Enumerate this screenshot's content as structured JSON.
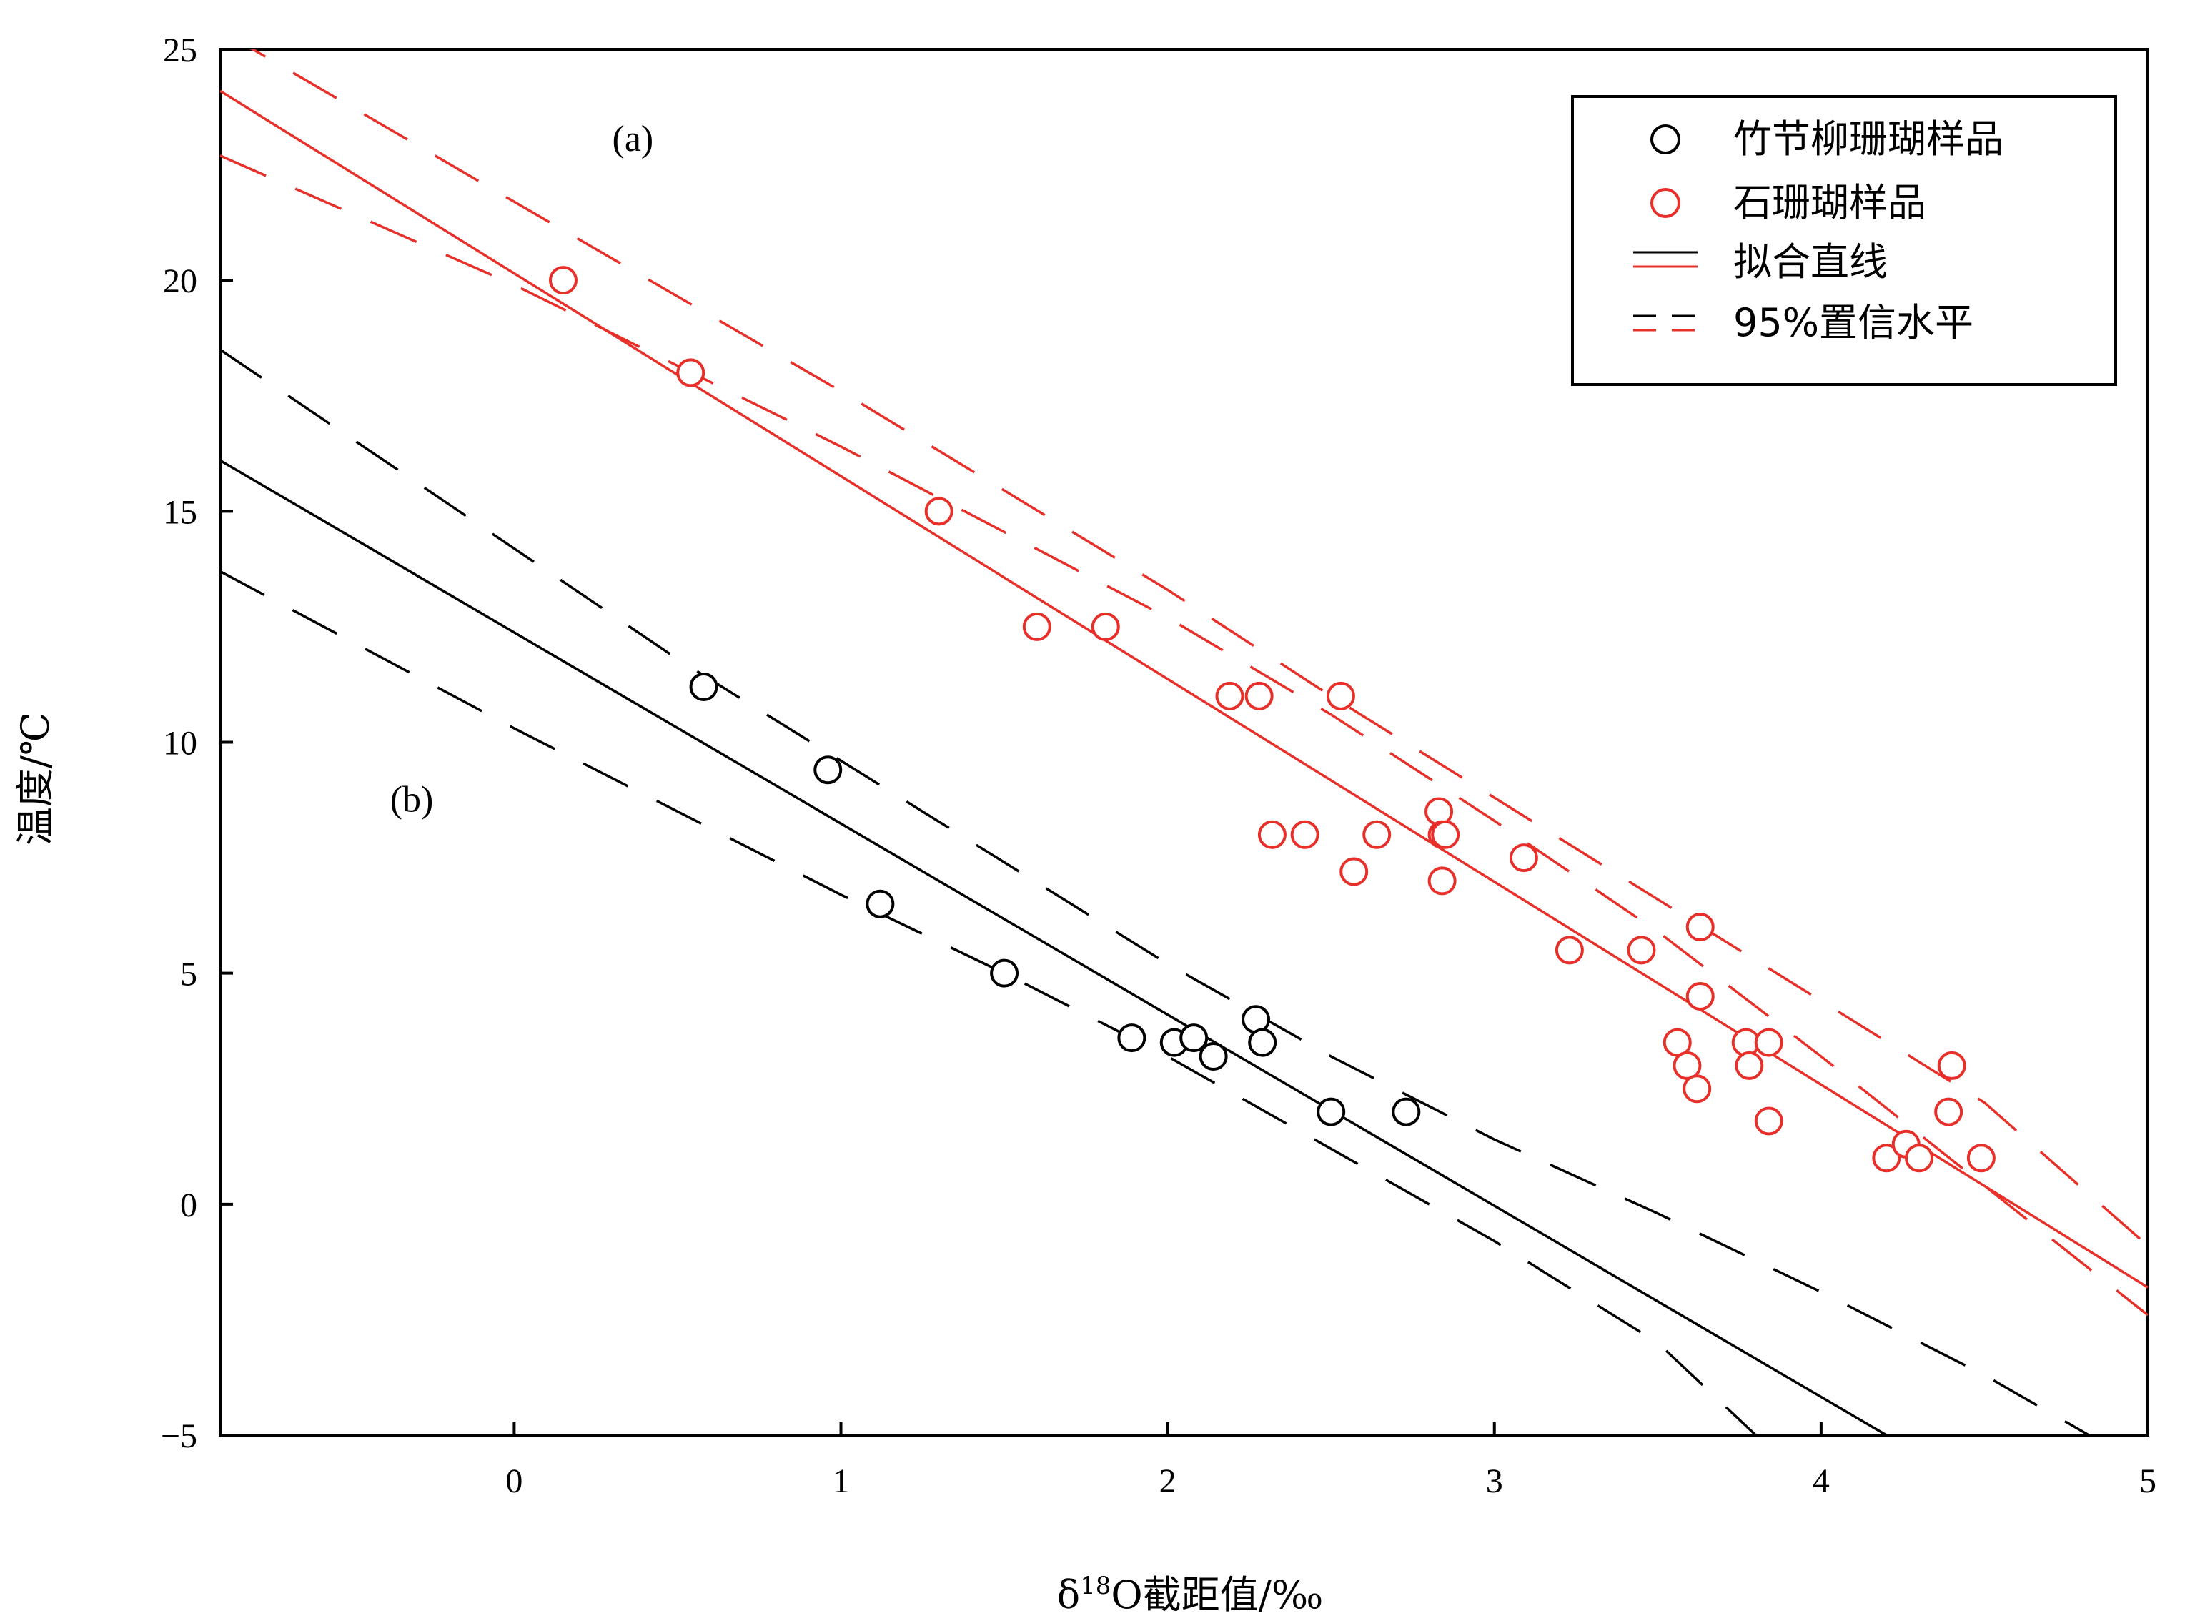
{
  "chart_data": {
    "type": "scatter",
    "xlabel_main": "δ",
    "xlabel_sup": "18",
    "xlabel_rest": "O截距值/‰",
    "ylabel": "温度/℃",
    "xlim": [
      -0.9,
      5
    ],
    "ylim": [
      -5,
      25
    ],
    "xticks": [
      0,
      1,
      2,
      3,
      4,
      5
    ],
    "yticks": [
      -5,
      0,
      5,
      10,
      15,
      20,
      25
    ],
    "xtick_labels": [
      "0",
      "1",
      "2",
      "3",
      "4",
      "5"
    ],
    "ytick_labels": [
      "−5",
      "0",
      "5",
      "10",
      "15",
      "20",
      "25"
    ],
    "grid": false,
    "legend_position": "top-right",
    "annotations": [
      {
        "text": "(a)",
        "x": 0.3,
        "y": 22.8
      },
      {
        "text": "(b)",
        "x": -0.38,
        "y": 8.5
      }
    ],
    "legend": [
      {
        "label": "竹节柳珊瑚样品",
        "kind": "circle",
        "color": "#000000"
      },
      {
        "label": "石珊瑚样品",
        "kind": "circle",
        "color": "#e8302a"
      },
      {
        "label": "拟合直线",
        "kind": "line",
        "colors": [
          "#000000",
          "#e8302a"
        ]
      },
      {
        "label": "95%置信水平",
        "kind": "dash",
        "colors": [
          "#000000",
          "#e8302a"
        ]
      }
    ],
    "series": [
      {
        "name": "竹节柳珊瑚样品",
        "color": "#000000",
        "points": [
          [
            0.58,
            11.2
          ],
          [
            0.96,
            9.4
          ],
          [
            1.12,
            6.5
          ],
          [
            1.5,
            5.0
          ],
          [
            1.89,
            3.6
          ],
          [
            2.02,
            3.5
          ],
          [
            2.08,
            3.6
          ],
          [
            2.14,
            3.2
          ],
          [
            2.27,
            4.0
          ],
          [
            2.29,
            3.5
          ],
          [
            2.5,
            2.0
          ],
          [
            2.73,
            2.0
          ]
        ],
        "fit": [
          [
            -0.9,
            16.1
          ],
          [
            4.2,
            -5.0
          ]
        ],
        "ci_upper": [
          [
            -0.9,
            18.5
          ],
          [
            0.5,
            11.8
          ],
          [
            1.0,
            9.6
          ],
          [
            1.5,
            7.4
          ],
          [
            2.0,
            5.2
          ],
          [
            2.5,
            3.2
          ],
          [
            3.0,
            1.4
          ],
          [
            3.5,
            -0.2
          ],
          [
            4.0,
            -1.9
          ],
          [
            4.5,
            -3.7
          ],
          [
            4.82,
            -5.0
          ]
        ],
        "ci_lower": [
          [
            -0.9,
            13.7
          ],
          [
            0.0,
            10.3
          ],
          [
            0.5,
            8.5
          ],
          [
            1.0,
            6.7
          ],
          [
            1.5,
            5.0
          ],
          [
            2.0,
            3.2
          ],
          [
            2.5,
            1.2
          ],
          [
            3.0,
            -0.8
          ],
          [
            3.5,
            -3.0
          ],
          [
            3.8,
            -5.0
          ]
        ]
      },
      {
        "name": "石珊瑚样品",
        "color": "#e8302a",
        "points": [
          [
            0.15,
            20.0
          ],
          [
            0.54,
            18.0
          ],
          [
            1.3,
            15.0
          ],
          [
            1.6,
            12.5
          ],
          [
            1.81,
            12.5
          ],
          [
            2.19,
            11.0
          ],
          [
            2.28,
            11.0
          ],
          [
            2.53,
            11.0
          ],
          [
            2.32,
            8.0
          ],
          [
            2.42,
            8.0
          ],
          [
            2.57,
            7.2
          ],
          [
            2.64,
            8.0
          ],
          [
            2.83,
            8.5
          ],
          [
            2.84,
            8.0
          ],
          [
            2.85,
            8.0
          ],
          [
            2.84,
            7.0
          ],
          [
            3.09,
            7.5
          ],
          [
            3.23,
            5.5
          ],
          [
            3.45,
            5.5
          ],
          [
            3.56,
            3.5
          ],
          [
            3.59,
            3.0
          ],
          [
            3.62,
            2.5
          ],
          [
            3.63,
            6.0
          ],
          [
            3.63,
            4.5
          ],
          [
            3.77,
            3.5
          ],
          [
            3.78,
            3.0
          ],
          [
            3.84,
            3.5
          ],
          [
            3.84,
            1.8
          ],
          [
            4.2,
            1.0
          ],
          [
            4.26,
            1.3
          ],
          [
            4.3,
            1.0
          ],
          [
            4.39,
            2.0
          ],
          [
            4.4,
            3.0
          ],
          [
            4.49,
            1.0
          ]
        ],
        "fit": [
          [
            -0.9,
            24.1
          ],
          [
            5.0,
            -1.8
          ]
        ],
        "ci_upper": [
          [
            -0.9,
            25.3
          ],
          [
            -0.8,
            25.0
          ],
          [
            0.0,
            21.7
          ],
          [
            1.0,
            17.6
          ],
          [
            2.0,
            13.3
          ],
          [
            2.5,
            11.0
          ],
          [
            3.0,
            8.8
          ],
          [
            3.5,
            6.6
          ],
          [
            4.0,
            4.4
          ],
          [
            4.5,
            2.2
          ],
          [
            5.0,
            -0.9
          ]
        ],
        "ci_lower": [
          [
            -0.9,
            22.7
          ],
          [
            0.0,
            19.9
          ],
          [
            1.0,
            16.4
          ],
          [
            2.0,
            12.7
          ],
          [
            2.5,
            10.6
          ],
          [
            3.0,
            8.3
          ],
          [
            3.5,
            5.9
          ],
          [
            4.0,
            3.2
          ],
          [
            4.5,
            0.4
          ],
          [
            5.0,
            -2.4
          ]
        ]
      }
    ]
  }
}
